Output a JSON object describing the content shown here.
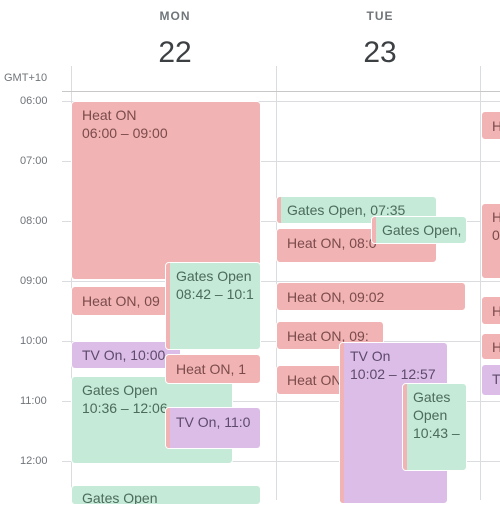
{
  "header": {
    "days": [
      {
        "name": "MON",
        "number": "22"
      },
      {
        "name": "TUE",
        "number": "23"
      }
    ],
    "timezone": "GMT+10"
  },
  "times": [
    "06:00",
    "07:00",
    "08:00",
    "09:00",
    "10:00",
    "11:00",
    "12:00"
  ],
  "events": {
    "mon_heat_on_1": {
      "title": "Heat ON",
      "time": "06:00 – 09:00"
    },
    "mon_heat_on_2": {
      "title": "Heat ON,",
      "time": "09"
    },
    "mon_gates_open_1": {
      "title": "Gates Open",
      "time": "08:42 – 10:1"
    },
    "mon_tv_on_1": {
      "title": "TV On,",
      "time": "10:00"
    },
    "mon_heat_on_3": {
      "title": "Heat ON,",
      "time": "1"
    },
    "mon_gates_open_2": {
      "title": "Gates Open",
      "time": "10:36 – 12:06"
    },
    "mon_tv_on_2": {
      "title": "TV On,",
      "time": "11:0"
    },
    "mon_gates_open_3": {
      "title": "Gates Open",
      "time": ""
    },
    "tue_gates_open_1": {
      "title": "Gates Open,",
      "time": "07:35"
    },
    "tue_gates_open_2": {
      "title": "Gates Open,",
      "time": ""
    },
    "tue_heat_on_1": {
      "title": "Heat ON,",
      "time": "08:0"
    },
    "tue_heat_on_2": {
      "title": "Heat ON,",
      "time": "09:02"
    },
    "tue_heat_on_3": {
      "title": "Heat ON,",
      "time": "09:"
    },
    "tue_heat_on_4": {
      "title": "Heat ON",
      "time": ""
    },
    "tue_tv_on_1": {
      "title": "TV On",
      "time": "10:02 – 12:57"
    },
    "tue_gates_open_3": {
      "title": "Gates Open",
      "time": "10:43 –"
    },
    "wed_h1": {
      "title": "H",
      "time": ""
    },
    "wed_h2": {
      "title": "H",
      "time": "0"
    },
    "wed_h3": {
      "title": "H",
      "time": ""
    },
    "wed_h4": {
      "title": "H",
      "time": ""
    },
    "wed_t1": {
      "title": "T",
      "time": ""
    }
  },
  "colors": {
    "heat": "#f1b3b3",
    "gates": "#c5ead7",
    "tv": "#dbbde8",
    "grid": "#dadce0"
  }
}
